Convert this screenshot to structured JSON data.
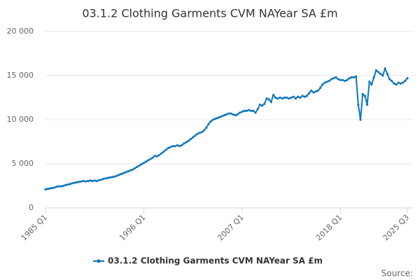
{
  "chart_data": {
    "type": "line",
    "title": "03.1.2 Clothing Garments CVM NAYear SA £m",
    "source": "Source:",
    "categories": [
      "1985 Q1",
      null,
      null,
      null,
      null,
      null,
      null,
      null,
      null,
      null,
      null,
      null,
      null,
      null,
      null,
      null,
      null,
      null,
      null,
      null,
      null,
      null,
      null,
      null,
      null,
      null,
      null,
      null,
      null,
      null,
      null,
      null,
      null,
      null,
      null,
      null,
      null,
      null,
      null,
      null,
      null,
      null,
      null,
      null,
      "1996 Q1",
      null,
      null,
      null,
      null,
      null,
      null,
      null,
      null,
      null,
      null,
      null,
      null,
      null,
      null,
      null,
      null,
      null,
      null,
      null,
      null,
      null,
      null,
      null,
      null,
      null,
      null,
      null,
      null,
      null,
      null,
      null,
      null,
      null,
      null,
      null,
      null,
      null,
      null,
      null,
      null,
      null,
      null,
      null,
      "2007 Q1",
      null,
      null,
      null,
      null,
      null,
      null,
      null,
      null,
      null,
      null,
      null,
      null,
      null,
      null,
      null,
      null,
      null,
      null,
      null,
      null,
      null,
      null,
      null,
      null,
      null,
      null,
      null,
      null,
      null,
      null,
      null,
      null,
      null,
      null,
      null,
      null,
      null,
      null,
      null,
      null,
      null,
      null,
      null,
      "2018 Q1",
      null,
      null,
      null,
      null,
      null,
      null,
      null,
      null,
      null,
      null,
      null,
      null,
      null,
      null,
      null,
      null,
      null,
      null,
      null,
      null,
      null,
      null,
      null,
      null,
      null,
      null,
      null,
      null,
      null,
      "2025 Q3"
    ],
    "series": [
      {
        "name": "03.1.2 Clothing Garments CVM NAYear SA £m",
        "color": "#0e76bc",
        "values": [
          2100,
          2150,
          2200,
          2250,
          2300,
          2400,
          2450,
          2450,
          2500,
          2600,
          2650,
          2700,
          2800,
          2850,
          2900,
          2950,
          3000,
          3050,
          3000,
          3050,
          3100,
          3050,
          3100,
          3050,
          3150,
          3200,
          3300,
          3350,
          3400,
          3450,
          3500,
          3550,
          3650,
          3750,
          3850,
          3950,
          4050,
          4150,
          4250,
          4350,
          4500,
          4650,
          4800,
          4950,
          5100,
          5250,
          5400,
          5550,
          5700,
          5900,
          5850,
          6000,
          6200,
          6400,
          6600,
          6800,
          6900,
          7000,
          7000,
          7100,
          7000,
          7100,
          7300,
          7450,
          7600,
          7800,
          8000,
          8200,
          8400,
          8500,
          8600,
          8800,
          9100,
          9500,
          9800,
          10000,
          10100,
          10200,
          10300,
          10400,
          10500,
          10600,
          10700,
          10700,
          10600,
          10500,
          10600,
          10800,
          10900,
          11000,
          11000,
          11100,
          11000,
          11000,
          10800,
          11200,
          11700,
          11600,
          11800,
          12400,
          12300,
          12000,
          12800,
          12500,
          12400,
          12500,
          12400,
          12500,
          12500,
          12400,
          12500,
          12600,
          12400,
          12600,
          12500,
          12700,
          12600,
          12700,
          13000,
          13300,
          13100,
          13200,
          13300,
          13600,
          14000,
          14200,
          14300,
          14400,
          14600,
          14700,
          14800,
          14600,
          14500,
          14500,
          14400,
          14500,
          14700,
          14800,
          14800,
          14900,
          11700,
          10000,
          12900,
          12700,
          11700,
          14300,
          14000,
          14800,
          15600,
          15400,
          15200,
          15000,
          15800,
          15200,
          14600,
          14400,
          14100,
          14000,
          14200,
          14100,
          14200,
          14400,
          14700
        ]
      }
    ],
    "ylim": [
      0,
      20000
    ],
    "yticks": [
      0,
      {
        "value": 5000,
        "label": "5 000"
      },
      {
        "value": 10000,
        "label": "10 000"
      },
      {
        "value": 15000,
        "label": "15 000"
      },
      {
        "value": 20000,
        "label": "20 000"
      }
    ],
    "grid": true
  }
}
